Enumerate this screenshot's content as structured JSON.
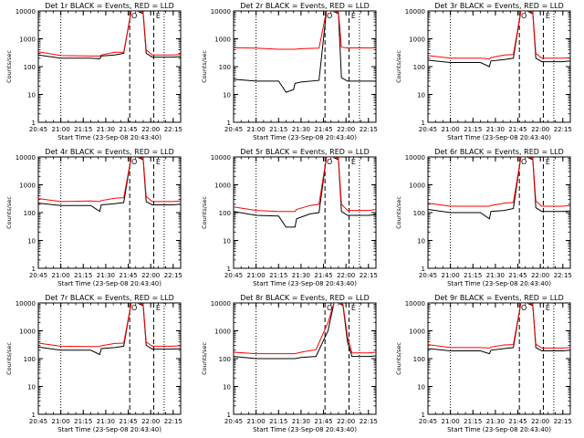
{
  "colors": {
    "events": "#000000",
    "lld": "#ff0000",
    "axes": "#000000"
  },
  "shared": {
    "ylabel": "Counts/sec",
    "xlabel": "Start Time (23-Sep-08 20:43:40)",
    "ylim": [
      1,
      10000
    ],
    "y_scale": "log",
    "ytick_labels": [
      "1",
      "10",
      "100",
      "1000",
      "10000"
    ],
    "xlim": [
      "20:45",
      "22:20"
    ],
    "xtick_labels": [
      "20:45",
      "21:00",
      "21:15",
      "21:30",
      "21:45",
      "22:00",
      "22:15"
    ],
    "marker_labels": [
      "O",
      "E"
    ]
  },
  "chart_data": [
    {
      "type": "line",
      "title": "Det 1r BLACK = Events, RED = LLD",
      "x": [
        "20:45",
        "21:00",
        "21:20",
        "21:26",
        "21:27",
        "21:36",
        "21:42",
        "21:47",
        "21:49",
        "21:51",
        "21:55",
        "21:57",
        "22:01",
        "22:15",
        "22:20"
      ],
      "series": [
        {
          "name": "Events",
          "values": [
            260,
            200,
            200,
            190,
            240,
            260,
            300,
            10000,
            10000,
            10000,
            8000,
            300,
            220,
            220,
            230
          ]
        },
        {
          "name": "LLD",
          "values": [
            340,
            250,
            240,
            240,
            260,
            330,
            330,
            10000,
            10000,
            10000,
            9000,
            400,
            260,
            260,
            270
          ]
        }
      ]
    },
    {
      "type": "line",
      "title": "Det 2r BLACK = Events, RED = LLD",
      "x": [
        "20:45",
        "21:00",
        "21:15",
        "21:20",
        "21:25",
        "21:26",
        "21:30",
        "21:42",
        "21:47",
        "21:49",
        "21:51",
        "21:55",
        "21:57",
        "22:01",
        "22:15",
        "22:20"
      ],
      "series": [
        {
          "name": "Events",
          "values": [
            35,
            30,
            30,
            12,
            15,
            25,
            28,
            32,
            10000,
            10000,
            10000,
            8000,
            40,
            30,
            30,
            30
          ]
        },
        {
          "name": "LLD",
          "values": [
            480,
            460,
            420,
            420,
            420,
            420,
            440,
            460,
            10000,
            10000,
            10000,
            9000,
            500,
            470,
            470,
            480
          ]
        }
      ]
    },
    {
      "type": "line",
      "title": "Det 3r BLACK = Events, RED = LLD",
      "x": [
        "20:45",
        "21:00",
        "21:20",
        "21:26",
        "21:27",
        "21:36",
        "21:42",
        "21:47",
        "21:49",
        "21:51",
        "21:55",
        "21:57",
        "22:01",
        "22:15",
        "22:20"
      ],
      "series": [
        {
          "name": "Events",
          "values": [
            170,
            140,
            140,
            100,
            160,
            180,
            200,
            10000,
            10000,
            10000,
            8000,
            200,
            150,
            150,
            160
          ]
        },
        {
          "name": "LLD",
          "values": [
            250,
            200,
            200,
            190,
            210,
            260,
            270,
            10000,
            10000,
            10000,
            9000,
            300,
            200,
            200,
            210
          ]
        }
      ]
    },
    {
      "type": "line",
      "title": "Det 4r BLACK = Events, RED = LLD",
      "x": [
        "20:45",
        "21:00",
        "21:20",
        "21:26",
        "21:27",
        "21:36",
        "21:42",
        "21:47",
        "21:49",
        "21:51",
        "21:55",
        "21:57",
        "22:01",
        "22:15",
        "22:20"
      ],
      "series": [
        {
          "name": "Events",
          "values": [
            220,
            180,
            180,
            110,
            190,
            210,
            230,
            10000,
            10000,
            10000,
            8000,
            250,
            190,
            190,
            200
          ]
        },
        {
          "name": "LLD",
          "values": [
            320,
            250,
            260,
            250,
            270,
            330,
            340,
            10000,
            10000,
            10000,
            9000,
            380,
            250,
            250,
            260
          ]
        }
      ]
    },
    {
      "type": "line",
      "title": "Det 5r BLACK = Events, RED = LLD",
      "x": [
        "20:45",
        "21:00",
        "21:15",
        "21:20",
        "21:26",
        "21:27",
        "21:36",
        "21:42",
        "21:47",
        "21:49",
        "21:51",
        "21:55",
        "21:57",
        "22:01",
        "22:15",
        "22:20"
      ],
      "series": [
        {
          "name": "Events",
          "values": [
            110,
            80,
            75,
            30,
            30,
            60,
            90,
            100,
            10000,
            10000,
            10000,
            8000,
            110,
            80,
            80,
            85
          ]
        },
        {
          "name": "LLD",
          "values": [
            160,
            120,
            110,
            110,
            110,
            130,
            180,
            200,
            10000,
            10000,
            10000,
            9000,
            200,
            120,
            120,
            130
          ]
        }
      ]
    },
    {
      "type": "line",
      "title": "Det 6r BLACK = Events, RED = LLD",
      "x": [
        "20:45",
        "21:00",
        "21:20",
        "21:26",
        "21:27",
        "21:36",
        "21:42",
        "21:47",
        "21:49",
        "21:51",
        "21:55",
        "21:57",
        "22:01",
        "22:15",
        "22:20"
      ],
      "series": [
        {
          "name": "Events",
          "values": [
            130,
            100,
            100,
            60,
            110,
            120,
            140,
            10000,
            10000,
            10000,
            8000,
            150,
            110,
            110,
            115
          ]
        },
        {
          "name": "LLD",
          "values": [
            220,
            170,
            170,
            170,
            180,
            220,
            230,
            10000,
            10000,
            10000,
            9000,
            260,
            170,
            170,
            180
          ]
        }
      ]
    },
    {
      "type": "line",
      "title": "Det 7r BLACK = Events, RED = LLD",
      "x": [
        "20:45",
        "21:00",
        "21:20",
        "21:26",
        "21:27",
        "21:36",
        "21:42",
        "21:47",
        "21:49",
        "21:51",
        "21:55",
        "21:57",
        "22:01",
        "22:15",
        "22:20"
      ],
      "series": [
        {
          "name": "Events",
          "values": [
            260,
            200,
            200,
            140,
            230,
            250,
            280,
            10000,
            10000,
            10000,
            8000,
            300,
            220,
            220,
            230
          ]
        },
        {
          "name": "LLD",
          "values": [
            360,
            280,
            270,
            270,
            290,
            350,
            360,
            10000,
            10000,
            10000,
            9000,
            400,
            280,
            280,
            290
          ]
        }
      ]
    },
    {
      "type": "line",
      "title": "Det 8r BLACK = Events, RED = LLD",
      "x": [
        "20:45",
        "21:00",
        "21:20",
        "21:26",
        "21:30",
        "21:40",
        "21:48",
        "21:52",
        "21:55",
        "21:58",
        "22:01",
        "22:04",
        "22:15",
        "22:20"
      ],
      "series": [
        {
          "name": "Events",
          "values": [
            120,
            100,
            100,
            100,
            110,
            120,
            1000,
            10000,
            10000,
            8000,
            400,
            120,
            120,
            125
          ]
        },
        {
          "name": "LLD",
          "values": [
            170,
            150,
            150,
            150,
            170,
            210,
            2000,
            10000,
            10000,
            9000,
            600,
            160,
            160,
            170
          ]
        }
      ]
    },
    {
      "type": "line",
      "title": "Det 9r BLACK = Events, RED = LLD",
      "x": [
        "20:45",
        "21:00",
        "21:20",
        "21:26",
        "21:27",
        "21:36",
        "21:42",
        "21:47",
        "21:49",
        "21:51",
        "21:55",
        "21:57",
        "22:01",
        "22:15",
        "22:20"
      ],
      "series": [
        {
          "name": "Events",
          "values": [
            230,
            190,
            190,
            150,
            200,
            230,
            250,
            10000,
            10000,
            10000,
            8000,
            250,
            190,
            190,
            200
          ]
        },
        {
          "name": "LLD",
          "values": [
            320,
            250,
            250,
            240,
            260,
            310,
            320,
            10000,
            10000,
            10000,
            9000,
            330,
            240,
            240,
            250
          ]
        }
      ]
    }
  ]
}
